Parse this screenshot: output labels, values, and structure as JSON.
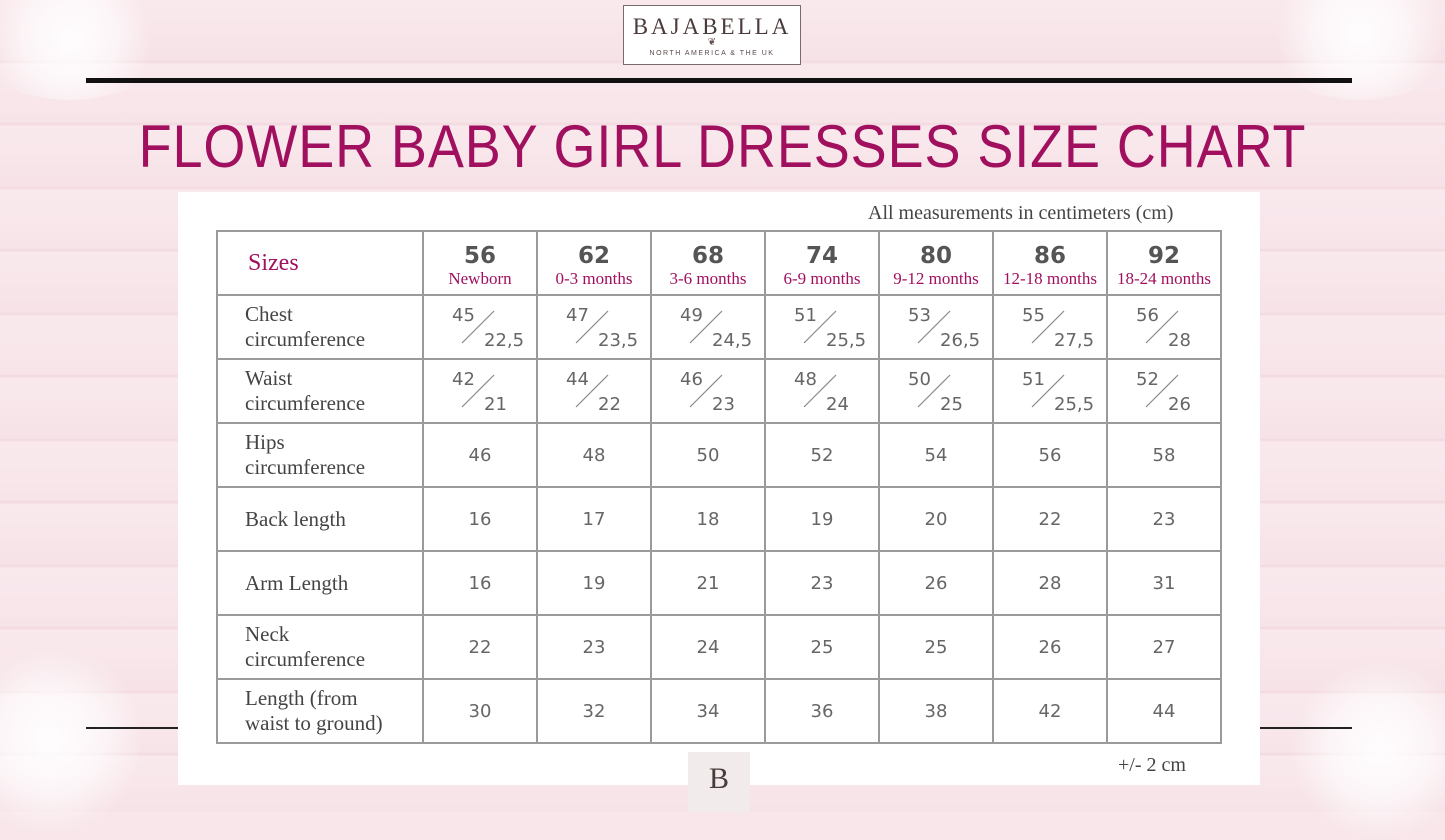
{
  "brand": {
    "name": "BAJABELLA",
    "ornament": "❦",
    "tagline": "NORTH AMERICA & THE UK",
    "mark": "B"
  },
  "title": "FLOWER BABY GIRL DRESSES SIZE CHART",
  "notes": {
    "units": "All measurements in centimeters (cm)",
    "tolerance": "+/- 2 cm"
  },
  "colors": {
    "accent": "#a0105f",
    "text": "#444444",
    "grid": "#9a9a9a"
  },
  "table": {
    "header_label": "Sizes",
    "sizes": [
      {
        "num": "56",
        "age": "Newborn"
      },
      {
        "num": "62",
        "age": "0-3 months"
      },
      {
        "num": "68",
        "age": "3-6 months"
      },
      {
        "num": "74",
        "age": "6-9 months"
      },
      {
        "num": "80",
        "age": "9-12 months"
      },
      {
        "num": "86",
        "age": "12-18 months"
      },
      {
        "num": "92",
        "age": "18-24 months"
      }
    ],
    "rows": [
      {
        "label1": "Chest",
        "label2": "circumference",
        "split": true,
        "values": [
          [
            "45",
            "22,5"
          ],
          [
            "47",
            "23,5"
          ],
          [
            "49",
            "24,5"
          ],
          [
            "51",
            "25,5"
          ],
          [
            "53",
            "26,5"
          ],
          [
            "55",
            "27,5"
          ],
          [
            "56",
            "28"
          ]
        ]
      },
      {
        "label1": "Waist",
        "label2": "circumference",
        "split": true,
        "values": [
          [
            "42",
            "21"
          ],
          [
            "44",
            "22"
          ],
          [
            "46",
            "23"
          ],
          [
            "48",
            "24"
          ],
          [
            "50",
            "25"
          ],
          [
            "51",
            "25,5"
          ],
          [
            "52",
            "26"
          ]
        ]
      },
      {
        "label1": "Hips",
        "label2": "circumference",
        "split": false,
        "values": [
          "46",
          "48",
          "50",
          "52",
          "54",
          "56",
          "58"
        ]
      },
      {
        "label1": "Back length",
        "label2": "",
        "split": false,
        "values": [
          "16",
          "17",
          "18",
          "19",
          "20",
          "22",
          "23"
        ]
      },
      {
        "label1": "Arm Length",
        "label2": "",
        "split": false,
        "values": [
          "16",
          "19",
          "21",
          "23",
          "26",
          "28",
          "31"
        ]
      },
      {
        "label1": "Neck",
        "label2": "circumference",
        "split": false,
        "values": [
          "22",
          "23",
          "24",
          "25",
          "25",
          "26",
          "27"
        ]
      },
      {
        "label1": "Length (from",
        "label2": "waist to ground)",
        "split": false,
        "values": [
          "30",
          "32",
          "34",
          "36",
          "38",
          "42",
          "44"
        ]
      }
    ]
  }
}
